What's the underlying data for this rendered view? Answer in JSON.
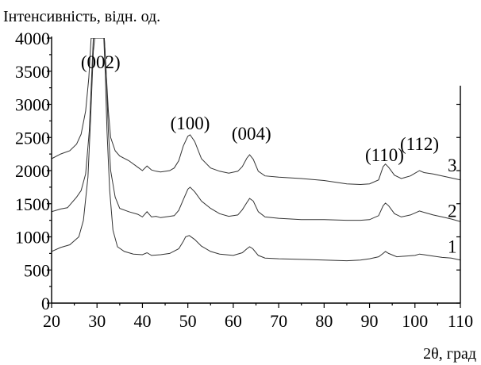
{
  "chart_data": {
    "type": "line",
    "xlabel": "2θ, град",
    "ylabel": "Інтенсивність, відн. од.",
    "xlim": [
      20,
      110
    ],
    "ylim": [
      0,
      4000
    ],
    "xticks": [
      20,
      30,
      40,
      50,
      60,
      70,
      80,
      90,
      100,
      110
    ],
    "yticks": [
      0,
      500,
      1000,
      1500,
      2000,
      2500,
      3000,
      3500,
      4000
    ],
    "grid": false,
    "line_color": "#333333",
    "peak_labels": [
      {
        "text": "(002)",
        "x": 30.8
      },
      {
        "text": "(100)",
        "x": 50.5
      },
      {
        "text": "(004)",
        "x": 64.0
      },
      {
        "text": "(110)",
        "x": 93.3
      },
      {
        "text": "(112)",
        "x": 101.0
      }
    ],
    "series": [
      {
        "name": "1",
        "label_x": 108.2,
        "label_y": 760,
        "points": [
          [
            20,
            780
          ],
          [
            22,
            840
          ],
          [
            24,
            880
          ],
          [
            26,
            1000
          ],
          [
            27,
            1250
          ],
          [
            28,
            1900
          ],
          [
            28.6,
            2800
          ],
          [
            29.2,
            3800
          ],
          [
            29.5,
            4000
          ],
          [
            31.5,
            4000
          ],
          [
            31.8,
            3500
          ],
          [
            32.2,
            2600
          ],
          [
            32.8,
            1700
          ],
          [
            33.5,
            1100
          ],
          [
            34.5,
            850
          ],
          [
            36,
            780
          ],
          [
            38,
            740
          ],
          [
            40,
            730
          ],
          [
            41,
            760
          ],
          [
            42,
            720
          ],
          [
            44,
            730
          ],
          [
            46,
            750
          ],
          [
            48,
            820
          ],
          [
            49,
            930
          ],
          [
            49.5,
            1000
          ],
          [
            50.3,
            1020
          ],
          [
            51.5,
            960
          ],
          [
            53,
            860
          ],
          [
            55,
            780
          ],
          [
            57,
            740
          ],
          [
            60,
            720
          ],
          [
            62,
            760
          ],
          [
            63,
            820
          ],
          [
            63.6,
            850
          ],
          [
            64.3,
            820
          ],
          [
            65.5,
            720
          ],
          [
            67,
            680
          ],
          [
            70,
            670
          ],
          [
            75,
            660
          ],
          [
            80,
            650
          ],
          [
            85,
            640
          ],
          [
            88,
            650
          ],
          [
            90,
            670
          ],
          [
            92,
            700
          ],
          [
            93,
            750
          ],
          [
            93.5,
            780
          ],
          [
            94.2,
            750
          ],
          [
            96,
            700
          ],
          [
            98,
            710
          ],
          [
            100,
            720
          ],
          [
            101,
            740
          ],
          [
            102,
            730
          ],
          [
            104,
            710
          ],
          [
            106,
            690
          ],
          [
            108,
            680
          ],
          [
            110,
            650
          ]
        ]
      },
      {
        "name": "2",
        "label_x": 108.2,
        "label_y": 1300,
        "points": [
          [
            20,
            1380
          ],
          [
            22,
            1420
          ],
          [
            23.5,
            1440
          ],
          [
            24.5,
            1520
          ],
          [
            25.5,
            1600
          ],
          [
            26.5,
            1700
          ],
          [
            27.5,
            1950
          ],
          [
            28.3,
            2600
          ],
          [
            28.8,
            3400
          ],
          [
            29.2,
            4000
          ],
          [
            31.6,
            4000
          ],
          [
            32,
            3500
          ],
          [
            32.5,
            2600
          ],
          [
            33,
            2000
          ],
          [
            34,
            1600
          ],
          [
            35,
            1430
          ],
          [
            37,
            1380
          ],
          [
            39,
            1340
          ],
          [
            40,
            1300
          ],
          [
            41,
            1380
          ],
          [
            42,
            1300
          ],
          [
            43,
            1310
          ],
          [
            44,
            1290
          ],
          [
            46,
            1310
          ],
          [
            47,
            1320
          ],
          [
            48,
            1400
          ],
          [
            49,
            1560
          ],
          [
            50,
            1720
          ],
          [
            50.5,
            1750
          ],
          [
            51.5,
            1680
          ],
          [
            53,
            1540
          ],
          [
            55,
            1430
          ],
          [
            57,
            1350
          ],
          [
            59,
            1310
          ],
          [
            61,
            1330
          ],
          [
            62,
            1410
          ],
          [
            63,
            1520
          ],
          [
            63.6,
            1580
          ],
          [
            64.4,
            1540
          ],
          [
            65.5,
            1380
          ],
          [
            67,
            1300
          ],
          [
            70,
            1280
          ],
          [
            75,
            1260
          ],
          [
            80,
            1260
          ],
          [
            85,
            1250
          ],
          [
            88,
            1250
          ],
          [
            90,
            1260
          ],
          [
            92,
            1320
          ],
          [
            93,
            1470
          ],
          [
            93.5,
            1510
          ],
          [
            94.2,
            1470
          ],
          [
            95.5,
            1350
          ],
          [
            97,
            1300
          ],
          [
            99,
            1330
          ],
          [
            100,
            1360
          ],
          [
            101,
            1390
          ],
          [
            102,
            1370
          ],
          [
            104,
            1330
          ],
          [
            106,
            1300
          ],
          [
            108,
            1270
          ],
          [
            110,
            1230
          ]
        ]
      },
      {
        "name": "3",
        "label_x": 108.2,
        "label_y": 1990,
        "points": [
          [
            20,
            2180
          ],
          [
            22,
            2250
          ],
          [
            24,
            2300
          ],
          [
            25.5,
            2400
          ],
          [
            26.5,
            2550
          ],
          [
            27.5,
            2900
          ],
          [
            28.2,
            3400
          ],
          [
            28.7,
            4000
          ],
          [
            31.6,
            4000
          ],
          [
            32,
            3500
          ],
          [
            32.5,
            2900
          ],
          [
            33,
            2500
          ],
          [
            34,
            2300
          ],
          [
            35,
            2220
          ],
          [
            37,
            2150
          ],
          [
            39,
            2050
          ],
          [
            40,
            2000
          ],
          [
            41,
            2070
          ],
          [
            42,
            2010
          ],
          [
            43,
            1990
          ],
          [
            44,
            1980
          ],
          [
            46,
            2000
          ],
          [
            47,
            2040
          ],
          [
            48,
            2150
          ],
          [
            49,
            2370
          ],
          [
            50,
            2520
          ],
          [
            50.5,
            2540
          ],
          [
            51.5,
            2440
          ],
          [
            53,
            2180
          ],
          [
            55,
            2040
          ],
          [
            57,
            1990
          ],
          [
            59,
            1960
          ],
          [
            61,
            1990
          ],
          [
            62,
            2060
          ],
          [
            63,
            2190
          ],
          [
            63.6,
            2240
          ],
          [
            64.4,
            2170
          ],
          [
            65.5,
            1990
          ],
          [
            67,
            1920
          ],
          [
            70,
            1900
          ],
          [
            75,
            1880
          ],
          [
            80,
            1850
          ],
          [
            85,
            1800
          ],
          [
            88,
            1790
          ],
          [
            90,
            1800
          ],
          [
            92,
            1860
          ],
          [
            93,
            2060
          ],
          [
            93.5,
            2100
          ],
          [
            94.2,
            2050
          ],
          [
            95.5,
            1930
          ],
          [
            97,
            1880
          ],
          [
            99,
            1920
          ],
          [
            100,
            1960
          ],
          [
            101,
            2000
          ],
          [
            102,
            1970
          ],
          [
            104,
            1950
          ],
          [
            106,
            1920
          ],
          [
            108,
            1890
          ],
          [
            110,
            1860
          ]
        ]
      }
    ]
  }
}
